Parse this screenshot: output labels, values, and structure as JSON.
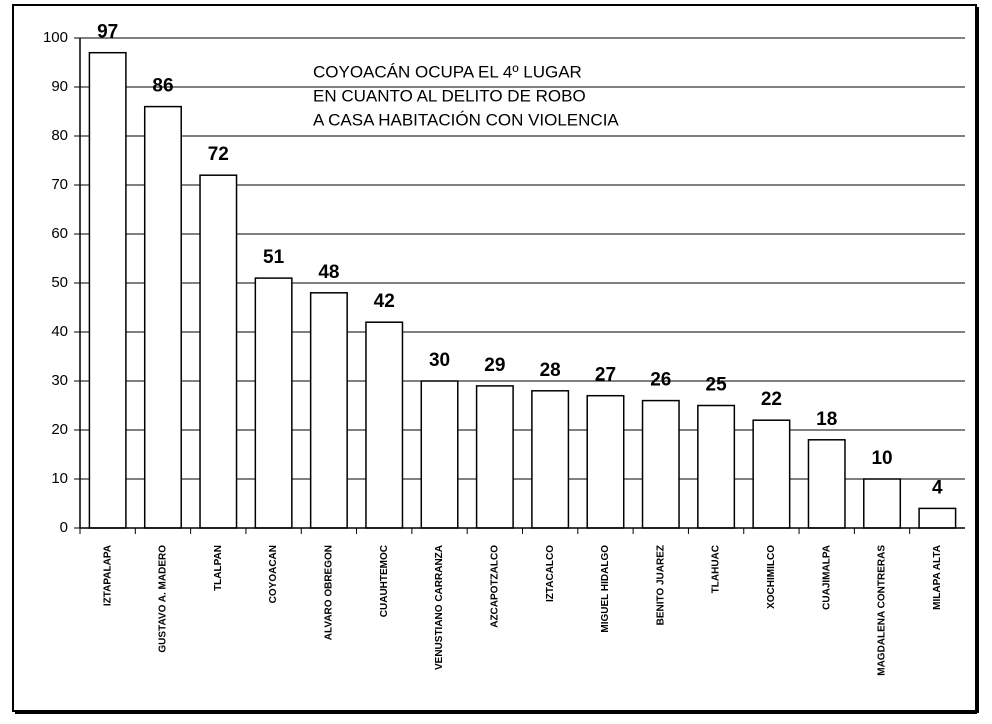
{
  "chart_data": {
    "type": "bar",
    "annotation": [
      "COYOACÁN OCUPA EL 4º LUGAR",
      "EN CUANTO AL DELITO DE ROBO",
      "A CASA HABITACIÓN CON VIOLENCIA"
    ],
    "categories": [
      "IZTAPALAPA",
      "GUSTAVO A. MADERO",
      "TLALPAN",
      "COYOACAN",
      "ALVARO OBREGON",
      "CUAUHTEMOC",
      "VENUSTIANO CARRANZA",
      "AZCAPOTZALCO",
      "IZTACALCO",
      "MIGUEL HIDALGO",
      "BENITO JUAREZ",
      "TLAHUAC",
      "XOCHIMILCO",
      "CUAJIMALPA",
      "MAGDALENA CONTRERAS",
      "MILAPA ALTA"
    ],
    "values": [
      97,
      86,
      72,
      51,
      48,
      42,
      30,
      29,
      28,
      27,
      26,
      25,
      22,
      18,
      10,
      4
    ],
    "color": "#ffffff",
    "ylim": [
      0,
      100
    ],
    "yticks": [
      0,
      10,
      20,
      30,
      40,
      50,
      60,
      70,
      80,
      90,
      100
    ],
    "grid": true
  }
}
